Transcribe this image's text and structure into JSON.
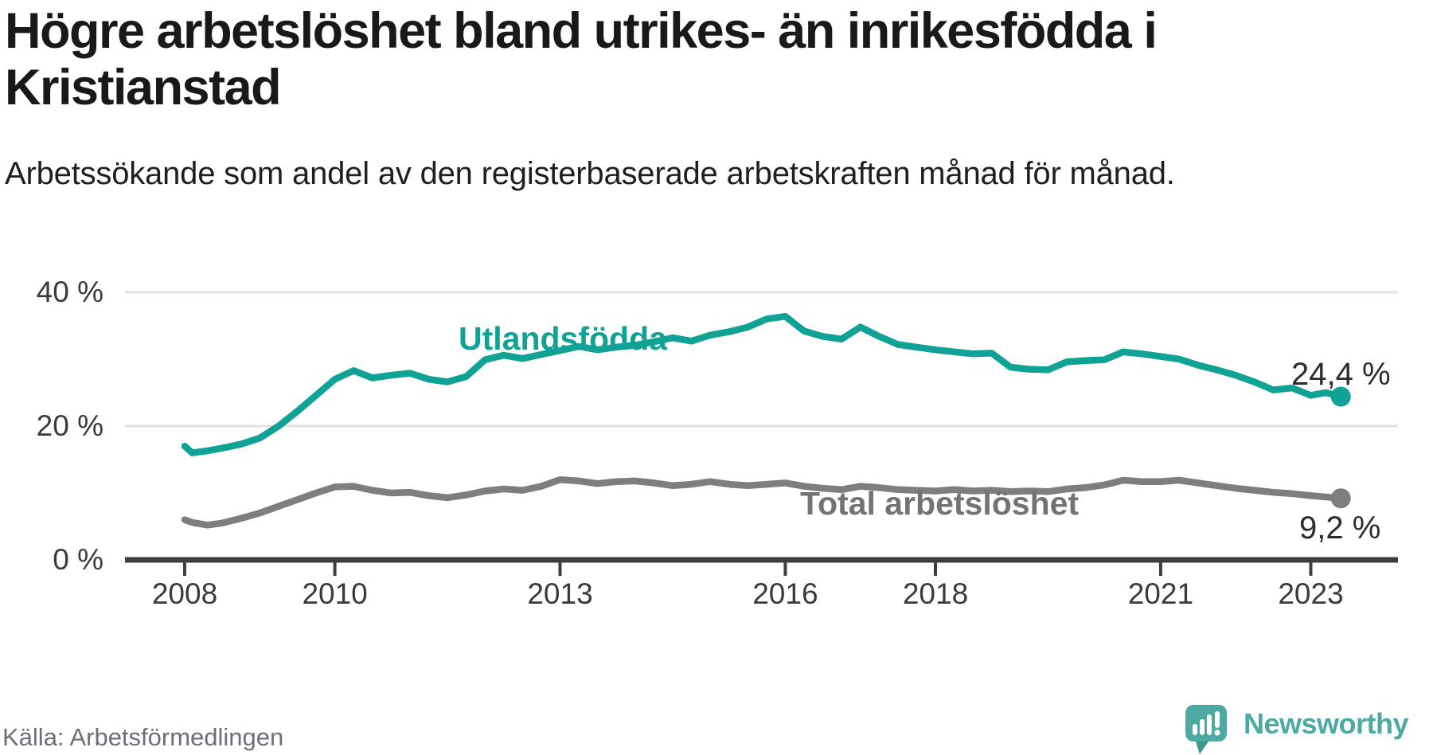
{
  "chart_data": {
    "type": "line",
    "title": "Högre arbetslöshet bland utrikes- än inrikesfödda i Kristianstad",
    "subtitle": "Arbetssökande som andel av den registerbaserade arbetskraften månad för månad.",
    "x_unit": "year (decimal, monthly data)",
    "y_unit": "percent of registered labour force",
    "ylim": [
      0,
      42
    ],
    "xlim": [
      2007.2,
      2024.2
    ],
    "grid": "horizontal",
    "x": [
      2008,
      2008.1,
      2008.3,
      2008.5,
      2008.75,
      2009,
      2009.25,
      2009.5,
      2009.75,
      2010,
      2010.25,
      2010.5,
      2010.75,
      2011,
      2011.25,
      2011.5,
      2011.75,
      2012,
      2012.25,
      2012.5,
      2012.75,
      2013,
      2013.25,
      2013.5,
      2013.75,
      2014,
      2014.25,
      2014.5,
      2014.75,
      2015,
      2015.25,
      2015.5,
      2015.75,
      2016,
      2016.25,
      2016.5,
      2016.75,
      2017,
      2017.25,
      2017.5,
      2017.75,
      2018,
      2018.25,
      2018.5,
      2018.75,
      2019,
      2019.25,
      2019.5,
      2019.75,
      2020,
      2020.25,
      2020.5,
      2020.75,
      2021,
      2021.25,
      2021.5,
      2021.75,
      2022,
      2022.25,
      2022.5,
      2022.75,
      2023,
      2023.2,
      2023.4
    ],
    "series": [
      {
        "name": "Utlandsfödda",
        "color": "#10a295",
        "end_label": "24,4 %",
        "end_value": 24.4,
        "values": [
          17.0,
          16.0,
          16.3,
          16.7,
          17.3,
          18.2,
          20.0,
          22.2,
          24.6,
          27.0,
          28.3,
          27.2,
          27.6,
          27.9,
          27.0,
          26.6,
          27.4,
          29.9,
          30.6,
          30.1,
          30.7,
          31.3,
          31.9,
          31.4,
          31.8,
          32.1,
          32.6,
          33.2,
          32.7,
          33.6,
          34.1,
          34.8,
          36.0,
          36.4,
          34.2,
          33.4,
          33.0,
          34.8,
          33.4,
          32.2,
          31.8,
          31.4,
          31.1,
          30.8,
          30.9,
          28.8,
          28.5,
          28.4,
          29.6,
          29.8,
          29.9,
          31.1,
          30.8,
          30.4,
          30.0,
          29.1,
          28.4,
          27.6,
          26.6,
          25.4,
          25.7,
          24.6,
          25.0,
          24.4
        ]
      },
      {
        "name": "Total arbetslöshet",
        "color": "#7e7e7e",
        "end_label": "9,2 %",
        "end_value": 9.2,
        "values": [
          6.0,
          5.6,
          5.2,
          5.5,
          6.2,
          7.0,
          8.0,
          9.0,
          10.0,
          10.9,
          11.0,
          10.4,
          10.0,
          10.1,
          9.6,
          9.3,
          9.7,
          10.3,
          10.6,
          10.4,
          11.0,
          12.0,
          11.8,
          11.4,
          11.7,
          11.8,
          11.5,
          11.1,
          11.3,
          11.7,
          11.3,
          11.1,
          11.3,
          11.5,
          11.0,
          10.7,
          10.5,
          11.0,
          10.8,
          10.5,
          10.4,
          10.3,
          10.5,
          10.3,
          10.4,
          10.2,
          10.3,
          10.2,
          10.6,
          10.8,
          11.2,
          11.9,
          11.7,
          11.7,
          11.9,
          11.5,
          11.1,
          10.7,
          10.4,
          10.1,
          9.9,
          9.6,
          9.4,
          9.2
        ]
      }
    ],
    "x_ticks": [
      {
        "value": 2008,
        "label": "2008"
      },
      {
        "value": 2010,
        "label": "2010"
      },
      {
        "value": 2013,
        "label": "2013"
      },
      {
        "value": 2016,
        "label": "2016"
      },
      {
        "value": 2018,
        "label": "2018"
      },
      {
        "value": 2021,
        "label": "2021"
      },
      {
        "value": 2023,
        "label": "2023"
      }
    ],
    "y_ticks": [
      {
        "value": 0,
        "label": "0 %"
      },
      {
        "value": 20,
        "label": "20 %"
      },
      {
        "value": 40,
        "label": "40 %"
      }
    ],
    "colors": {
      "grid": "#e1e1e1",
      "axis": "#3d3d3d",
      "tick_text": "#3a3a3a",
      "value_text": "#2b2b2b"
    }
  },
  "footer": {
    "source": "Källa: Arbetsförmedlingen",
    "brand": "Newsworthy",
    "brand_color": "#4caaa3"
  }
}
